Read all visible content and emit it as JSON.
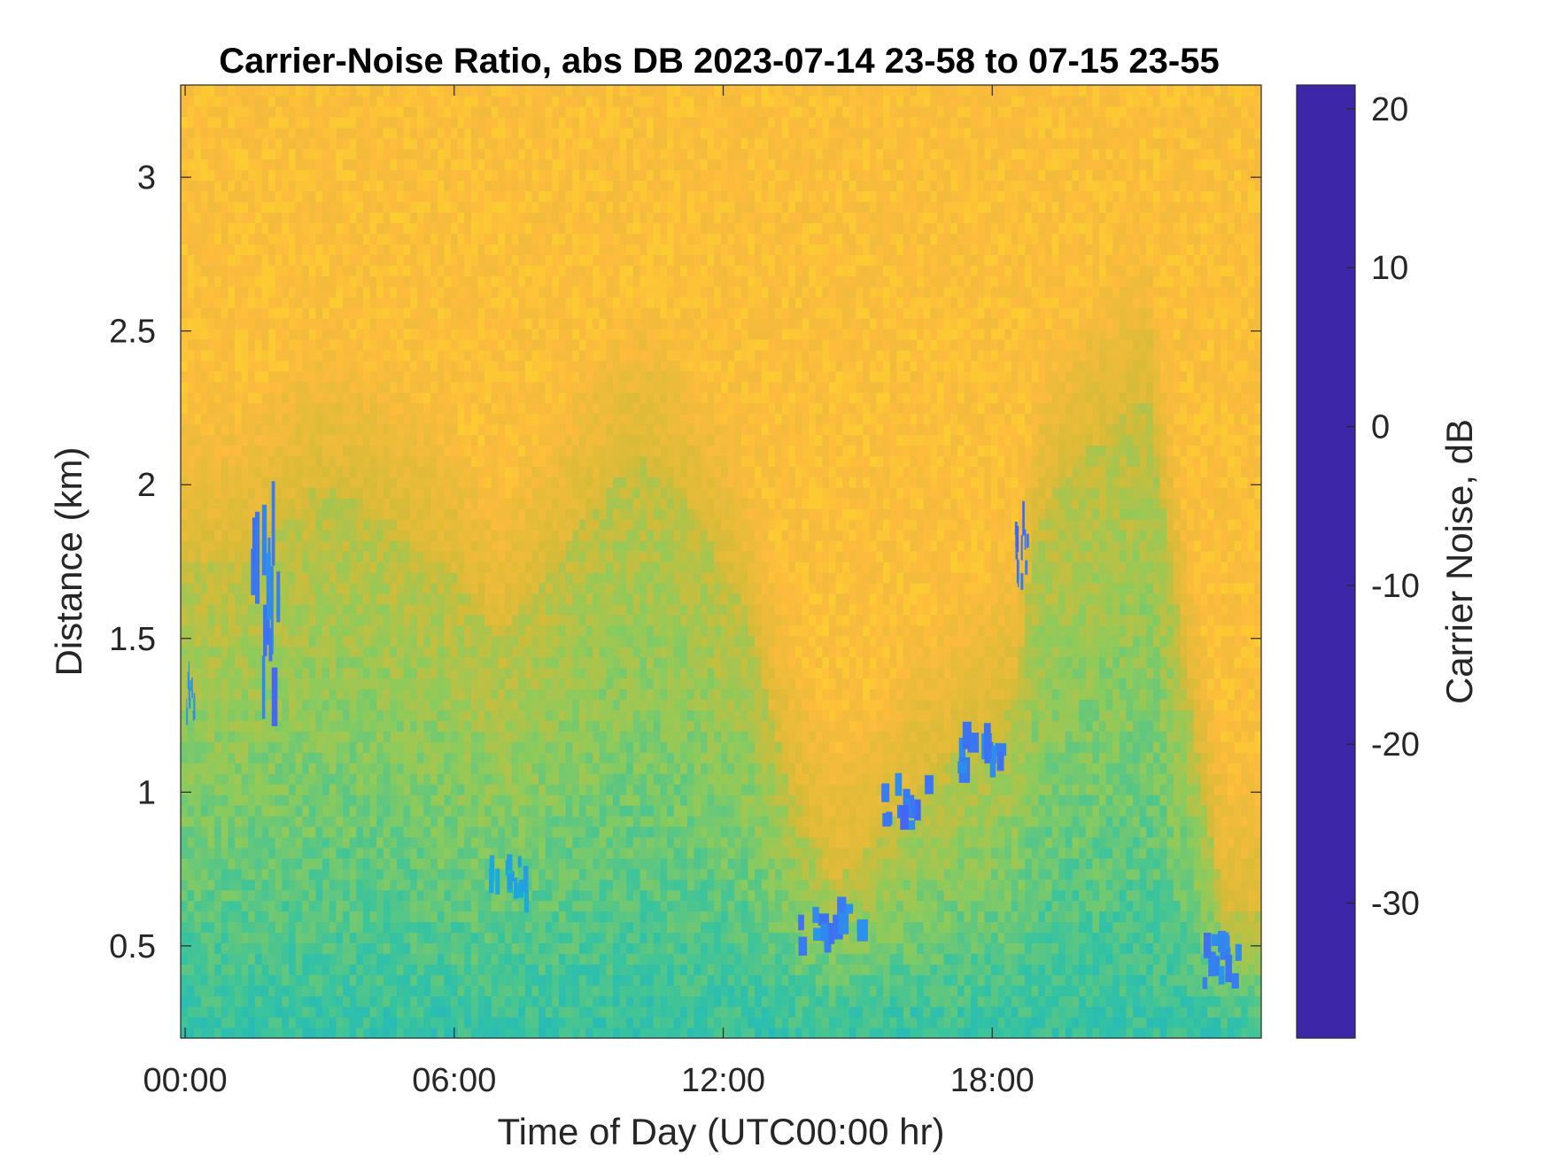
{
  "chart_data": {
    "type": "heatmap",
    "title": "Carrier-Noise Ratio, abs DB 2023-07-14 23-58 to 07-15 23-55",
    "xlabel": "Time of Day (UTC00:00 hr)",
    "ylabel": "Distance (km)",
    "colorbar_label": "Carrier Noise, dB",
    "x_ticks": [
      {
        "value": 0,
        "label": "00:00"
      },
      {
        "value": 6,
        "label": "06:00"
      },
      {
        "value": 12,
        "label": "12:00"
      },
      {
        "value": 18,
        "label": "18:00"
      }
    ],
    "y_ticks": [
      {
        "value": 0.5,
        "label": "0.5"
      },
      {
        "value": 1,
        "label": "1"
      },
      {
        "value": 1.5,
        "label": "1.5"
      },
      {
        "value": 2,
        "label": "2"
      },
      {
        "value": 2.5,
        "label": "2.5"
      },
      {
        "value": 3,
        "label": "3"
      }
    ],
    "colorbar_ticks": [
      {
        "value": 20,
        "label": "20"
      },
      {
        "value": 10,
        "label": "10"
      },
      {
        "value": 0,
        "label": "0"
      },
      {
        "value": -10,
        "label": "-10"
      },
      {
        "value": -20,
        "label": "-20"
      },
      {
        "value": -30,
        "label": "-30"
      }
    ],
    "xlim": [
      -0.1,
      24
    ],
    "ylim": [
      0.2,
      3.3
    ],
    "clim": [
      -38.5,
      21.5
    ],
    "colormap": "parula",
    "grid": false,
    "color_stops": [
      "#3e26a8",
      "#4365f6",
      "#2f8ced",
      "#16b1d4",
      "#36c3a0",
      "#8ccb5c",
      "#d3bb38",
      "#fdbb3c",
      "#f9fb15"
    ],
    "background_level": -31,
    "boundary_layer_top_km": [
      {
        "t": 0,
        "h": 1.75
      },
      {
        "t": 1,
        "h": 1.75
      },
      {
        "t": 2,
        "h": 1.85
      },
      {
        "t": 3,
        "h": 2.0
      },
      {
        "t": 4.5,
        "h": 1.9
      },
      {
        "t": 6,
        "h": 1.7
      },
      {
        "t": 7,
        "h": 1.5
      },
      {
        "t": 8.5,
        "h": 1.8
      },
      {
        "t": 10,
        "h": 2.1
      },
      {
        "t": 11,
        "h": 2.0
      },
      {
        "t": 12.5,
        "h": 1.6
      },
      {
        "t": 13.5,
        "h": 1.0
      },
      {
        "t": 14.5,
        "h": 0.7
      },
      {
        "t": 15.5,
        "h": 0.85
      },
      {
        "t": 16.5,
        "h": 1.05
      },
      {
        "t": 17.5,
        "h": 1.15
      },
      {
        "t": 18.5,
        "h": 1.3
      },
      {
        "t": 19,
        "h": 1.9
      },
      {
        "t": 20,
        "h": 2.1
      },
      {
        "t": 21.5,
        "h": 2.3
      },
      {
        "t": 22.5,
        "h": 1.2
      },
      {
        "t": 23.2,
        "h": 0.6
      },
      {
        "t": 23.9,
        "h": 0.6
      }
    ],
    "mixed_layer_level": -16,
    "strong_returns": [
      {
        "t0": 1.4,
        "t1": 2.1,
        "h0": 1.2,
        "h1": 1.9,
        "level": 14
      },
      {
        "t0": 0.0,
        "t1": 0.2,
        "h0": 1.2,
        "h1": 1.4,
        "level": 8
      },
      {
        "t0": 6.7,
        "t1": 7.6,
        "h0": 0.6,
        "h1": 0.8,
        "level": 4
      },
      {
        "t0": 13.6,
        "t1": 15.0,
        "h0": 0.45,
        "h1": 0.65,
        "level": 12
      },
      {
        "t0": 15.5,
        "t1": 16.5,
        "h0": 0.85,
        "h1": 1.05,
        "level": 14
      },
      {
        "t0": 17.0,
        "t1": 18.3,
        "h0": 1.0,
        "h1": 1.2,
        "level": 14
      },
      {
        "t0": 18.5,
        "t1": 18.8,
        "h0": 1.65,
        "h1": 1.9,
        "level": 15
      },
      {
        "t0": 22.6,
        "t1": 23.5,
        "h0": 0.35,
        "h1": 0.55,
        "level": 12
      }
    ]
  }
}
